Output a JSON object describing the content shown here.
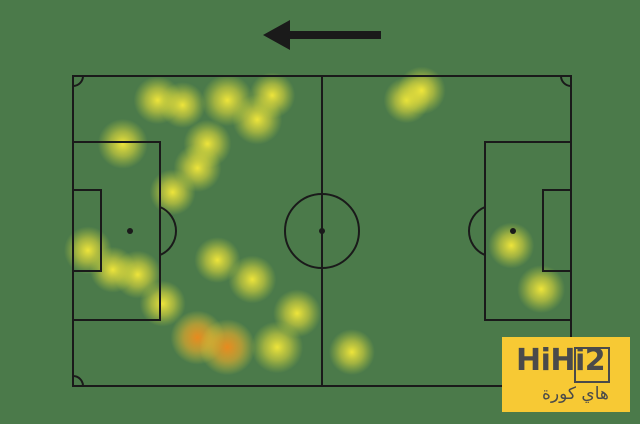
{
  "colors": {
    "background": "#4b7a4a",
    "lines": "#1a1a1a",
    "heat_low": "#f3e83a",
    "heat_high": "#f08a1c",
    "logo_bg": "#f7c934"
  },
  "direction_of_play": "left",
  "arrow_icon": "arrow-left-icon",
  "heat_spots_intensity": [
    0.6,
    0.8,
    0.7,
    0.5,
    0.6,
    0.7,
    0.6,
    0.5,
    0.5,
    0.6,
    0.6,
    0.5,
    0.6,
    0.9,
    1.0,
    0.8,
    0.6,
    0.5,
    0.5,
    0.6,
    0.5,
    0.6,
    0.5,
    0.5
  ],
  "logo": {
    "main": "HiHi2",
    "arabic": "هاي كورة"
  }
}
